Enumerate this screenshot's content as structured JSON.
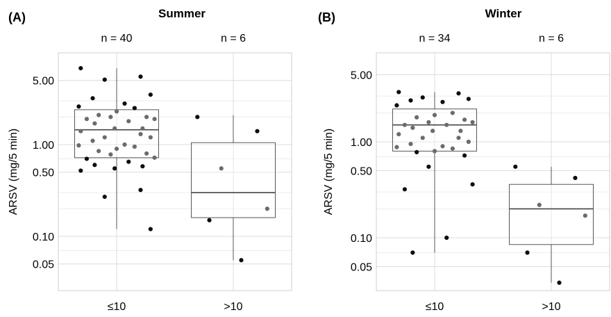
{
  "chart_data": [
    {
      "type": "boxplot",
      "panel_label": "(A)",
      "title": "Summer",
      "ylabel": "ARSV (mg/5 min)",
      "yscale": "log",
      "ylim": [
        0.03,
        9.0
      ],
      "yticks": [
        0.05,
        0.1,
        0.5,
        1.0,
        5.0
      ],
      "ytick_labels": [
        "0.05",
        "0.10",
        "0.50",
        "1.00",
        "5.00"
      ],
      "categories": [
        "≤10",
        ">10"
      ],
      "n_labels": [
        "n = 40",
        "n = 6"
      ],
      "grid": true,
      "boxes": [
        {
          "category": "≤10",
          "whisker_low": 0.12,
          "q1": 0.72,
          "median": 1.45,
          "q3": 2.4,
          "whisker_high": 6.8
        },
        {
          "category": ">10",
          "whisker_low": 0.055,
          "q1": 0.16,
          "median": 0.3,
          "q3": 1.05,
          "whisker_high": 2.1
        }
      ],
      "points": [
        {
          "group": 0,
          "values": [
            6.8,
            5.5,
            5.1,
            3.5,
            3.2,
            2.8,
            2.6,
            2.5,
            2.3,
            2.1,
            2.0,
            2.0,
            1.9,
            1.9,
            1.8,
            1.7,
            1.5,
            1.5,
            1.4,
            1.3,
            1.2,
            1.2,
            1.1,
            1.0,
            0.98,
            0.95,
            0.9,
            0.85,
            0.8,
            0.78,
            0.72,
            0.7,
            0.65,
            0.6,
            0.58,
            0.55,
            0.52,
            0.32,
            0.27,
            0.12
          ]
        },
        {
          "group": 1,
          "values": [
            2.0,
            1.4,
            0.55,
            0.2,
            0.15,
            0.055
          ]
        }
      ]
    },
    {
      "type": "boxplot",
      "panel_label": "(B)",
      "title": "Winter",
      "ylabel": "ARSV (mg/5 min)",
      "yscale": "log",
      "ylim": [
        0.03,
        9.0
      ],
      "yticks": [
        0.05,
        0.1,
        0.5,
        1.0,
        5.0
      ],
      "ytick_labels": [
        "0.05",
        "0.10",
        "0.50",
        "1.00",
        "5.00"
      ],
      "categories": [
        "≤10",
        ">10"
      ],
      "n_labels": [
        "n = 34",
        "n = 6"
      ],
      "grid": true,
      "boxes": [
        {
          "category": "≤10",
          "whisker_low": 0.07,
          "q1": 0.8,
          "median": 1.5,
          "q3": 2.2,
          "whisker_high": 3.3
        },
        {
          "category": ">10",
          "whisker_low": 0.034,
          "q1": 0.085,
          "median": 0.2,
          "q3": 0.36,
          "whisker_high": 0.55
        }
      ],
      "points": [
        {
          "group": 0,
          "values": [
            3.3,
            3.2,
            2.9,
            2.8,
            2.7,
            2.6,
            2.4,
            2.0,
            1.9,
            1.8,
            1.7,
            1.6,
            1.6,
            1.5,
            1.5,
            1.4,
            1.3,
            1.3,
            1.2,
            1.1,
            1.1,
            1.0,
            0.95,
            0.9,
            0.88,
            0.85,
            0.8,
            0.78,
            0.72,
            0.55,
            0.36,
            0.32,
            0.1,
            0.07
          ]
        },
        {
          "group": 1,
          "values": [
            0.55,
            0.42,
            0.22,
            0.17,
            0.07,
            0.034
          ]
        }
      ]
    }
  ]
}
